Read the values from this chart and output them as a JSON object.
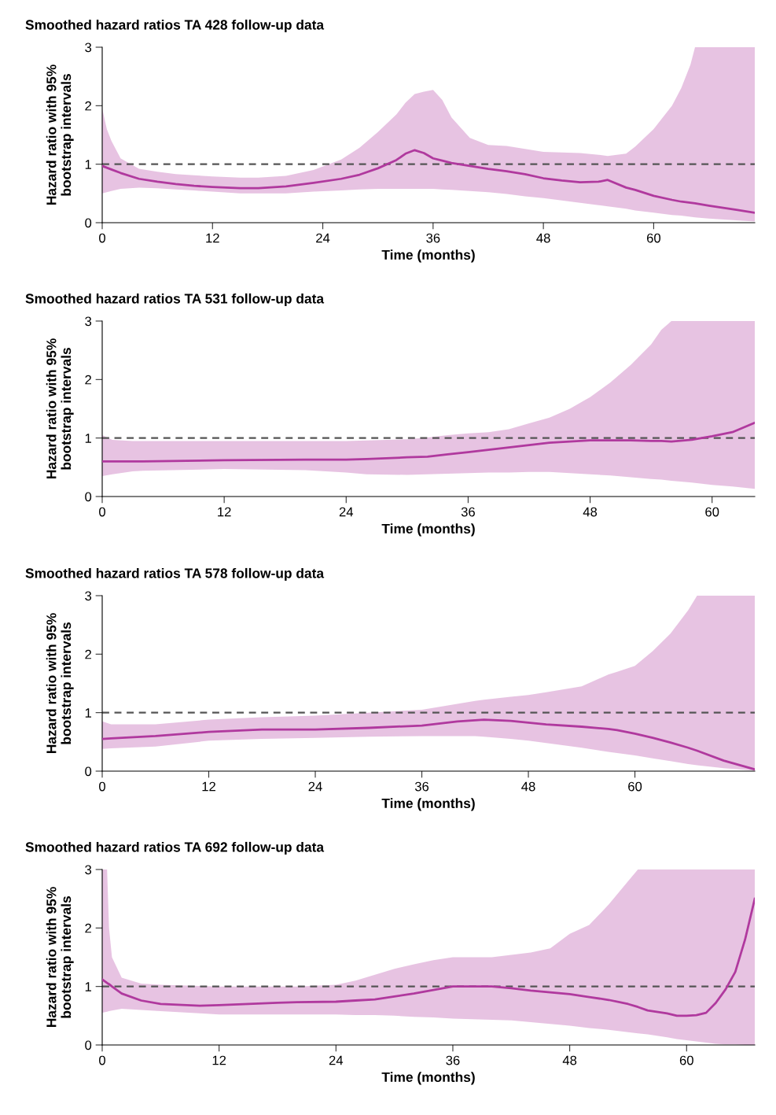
{
  "chart_data": [
    {
      "type": "line",
      "title": "Smoothed hazard ratios TA 428 follow-up data",
      "xlabel": "Time (months)",
      "ylabel": "Hazard ratio with 95%\nbootstrap intervals",
      "xlim": [
        0,
        71
      ],
      "xticks": [
        0,
        12,
        24,
        36,
        48,
        60
      ],
      "ylim": [
        0,
        3
      ],
      "yticks": [
        0,
        1,
        2,
        3
      ],
      "line_style": "solid",
      "grid": false,
      "ref_lines": [
        {
          "axis": "y",
          "value": 1,
          "color": "#555555",
          "line_style": "dashed"
        }
      ],
      "series": [
        {
          "color": "#b0399e",
          "x": [
            0,
            0.5,
            1,
            2,
            4,
            6,
            8,
            10,
            12,
            15,
            17,
            20,
            23,
            26,
            28,
            30,
            32,
            33,
            34,
            35,
            36,
            37,
            38,
            40,
            42,
            44,
            46,
            48,
            50,
            52,
            54,
            55,
            57,
            58,
            60,
            62,
            63,
            64,
            64.5,
            66,
            69,
            71
          ],
          "values": [
            0.97,
            0.94,
            0.91,
            0.85,
            0.75,
            0.7,
            0.66,
            0.63,
            0.61,
            0.59,
            0.59,
            0.62,
            0.68,
            0.75,
            0.82,
            0.93,
            1.07,
            1.18,
            1.24,
            1.19,
            1.1,
            1.06,
            1.02,
            0.97,
            0.92,
            0.88,
            0.83,
            0.76,
            0.72,
            0.69,
            0.7,
            0.73,
            0.6,
            0.56,
            0.46,
            0.39,
            0.36,
            0.34,
            0.33,
            0.29,
            0.22,
            0.17
          ],
          "upper": [
            1.95,
            1.6,
            1.4,
            1.1,
            0.92,
            0.87,
            0.83,
            0.81,
            0.79,
            0.77,
            0.77,
            0.8,
            0.9,
            1.08,
            1.28,
            1.55,
            1.85,
            2.05,
            2.2,
            2.24,
            2.27,
            2.1,
            1.8,
            1.45,
            1.33,
            1.31,
            1.26,
            1.21,
            1.2,
            1.19,
            1.16,
            1.14,
            1.18,
            1.3,
            1.6,
            2.0,
            2.3,
            2.7,
            3.0,
            3.0,
            3.0,
            3.0
          ],
          "lower": [
            0.5,
            0.52,
            0.54,
            0.58,
            0.6,
            0.59,
            0.57,
            0.55,
            0.53,
            0.5,
            0.5,
            0.5,
            0.53,
            0.55,
            0.57,
            0.58,
            0.58,
            0.58,
            0.58,
            0.58,
            0.58,
            0.57,
            0.56,
            0.54,
            0.52,
            0.49,
            0.45,
            0.42,
            0.38,
            0.34,
            0.3,
            0.28,
            0.24,
            0.21,
            0.17,
            0.13,
            0.12,
            0.1,
            0.09,
            0.07,
            0.04,
            0.02
          ]
        }
      ]
    },
    {
      "type": "line",
      "title": "Smoothed hazard ratios TA 531 follow-up data",
      "xlabel": "Time (months)",
      "ylabel": "Hazard ratio with 95%\nbootstrap intervals",
      "xlim": [
        0,
        64.2
      ],
      "xticks": [
        0,
        12,
        24,
        36,
        48,
        60
      ],
      "ylim": [
        0,
        3
      ],
      "yticks": [
        0,
        1,
        2,
        3
      ],
      "line_style": "solid",
      "grid": false,
      "ref_lines": [
        {
          "axis": "y",
          "value": 1,
          "color": "#555555",
          "line_style": "dashed"
        }
      ],
      "series": [
        {
          "color": "#b0399e",
          "x": [
            0,
            1,
            3,
            4,
            12,
            20,
            24,
            26,
            30,
            32,
            34,
            36,
            38,
            40,
            42,
            44,
            46,
            48,
            50,
            52,
            54,
            55,
            56,
            58,
            60,
            62,
            64.2
          ],
          "values": [
            0.6,
            0.6,
            0.6,
            0.6,
            0.62,
            0.63,
            0.63,
            0.64,
            0.67,
            0.68,
            0.72,
            0.76,
            0.8,
            0.84,
            0.88,
            0.92,
            0.94,
            0.96,
            0.96,
            0.96,
            0.95,
            0.95,
            0.94,
            0.97,
            1.03,
            1.1,
            1.26
          ],
          "upper": [
            1.05,
            0.97,
            0.95,
            0.95,
            0.95,
            0.95,
            0.95,
            0.96,
            0.98,
            1.01,
            1.05,
            1.08,
            1.1,
            1.15,
            1.25,
            1.35,
            1.5,
            1.7,
            1.95,
            2.25,
            2.6,
            2.85,
            3.0,
            3.0,
            3.0,
            3.0,
            3.0
          ],
          "lower": [
            0.35,
            0.38,
            0.43,
            0.44,
            0.47,
            0.45,
            0.41,
            0.38,
            0.37,
            0.38,
            0.39,
            0.4,
            0.41,
            0.41,
            0.42,
            0.42,
            0.4,
            0.38,
            0.36,
            0.33,
            0.3,
            0.29,
            0.27,
            0.24,
            0.2,
            0.17,
            0.13
          ]
        }
      ]
    },
    {
      "type": "line",
      "title": "Smoothed hazard ratios TA 578 follow-up data",
      "xlabel": "Time (months)",
      "ylabel": "Hazard ratio with 95%\nbootstrap intervals",
      "xlim": [
        0,
        73.5
      ],
      "xticks": [
        0,
        12,
        24,
        36,
        48,
        60
      ],
      "ylim": [
        0,
        3
      ],
      "yticks": [
        0,
        1,
        2,
        3
      ],
      "line_style": "solid",
      "grid": false,
      "ref_lines": [
        {
          "axis": "y",
          "value": 1,
          "color": "#555555",
          "line_style": "dashed"
        }
      ],
      "series": [
        {
          "color": "#b0399e",
          "x": [
            0,
            1,
            6,
            12,
            18,
            24,
            30,
            36,
            40,
            42,
            43,
            46,
            48,
            50,
            54,
            57,
            58,
            60,
            62,
            64,
            66,
            67,
            70,
            73.5
          ],
          "values": [
            0.55,
            0.56,
            0.6,
            0.67,
            0.71,
            0.71,
            0.74,
            0.78,
            0.85,
            0.87,
            0.88,
            0.86,
            0.83,
            0.8,
            0.76,
            0.72,
            0.7,
            0.64,
            0.57,
            0.49,
            0.4,
            0.35,
            0.18,
            0.03
          ],
          "upper": [
            0.85,
            0.8,
            0.8,
            0.88,
            0.92,
            0.95,
            1.0,
            1.05,
            1.15,
            1.2,
            1.22,
            1.27,
            1.3,
            1.35,
            1.45,
            1.65,
            1.7,
            1.8,
            2.05,
            2.35,
            2.75,
            3.0,
            3.0,
            3.0
          ],
          "lower": [
            0.38,
            0.39,
            0.42,
            0.52,
            0.55,
            0.57,
            0.59,
            0.6,
            0.6,
            0.6,
            0.59,
            0.55,
            0.52,
            0.48,
            0.4,
            0.33,
            0.31,
            0.27,
            0.22,
            0.17,
            0.12,
            0.1,
            0.05,
            0.01
          ]
        }
      ]
    },
    {
      "type": "line",
      "title": "Smoothed hazard ratios TA 692 follow-up data",
      "xlabel": "Time (months)",
      "ylabel": "Hazard ratio with 95%\nbootstrap intervals",
      "xlim": [
        0,
        67
      ],
      "xticks": [
        0,
        12,
        24,
        36,
        48,
        60
      ],
      "ylim": [
        0,
        3
      ],
      "yticks": [
        0,
        1,
        2,
        3
      ],
      "line_style": "solid",
      "grid": false,
      "ref_lines": [
        {
          "axis": "y",
          "value": 1,
          "color": "#555555",
          "line_style": "dashed"
        }
      ],
      "series": [
        {
          "color": "#b0399e",
          "x": [
            0,
            0.5,
            0.7,
            1,
            2,
            4,
            6,
            10,
            12,
            18,
            20,
            24,
            26,
            28,
            30,
            32,
            34,
            36,
            38,
            40,
            42,
            44,
            46,
            48,
            50,
            52,
            54,
            55,
            56,
            58,
            59,
            60,
            61,
            62,
            63,
            64,
            65,
            66,
            67
          ],
          "values": [
            1.12,
            1.06,
            1.04,
            1.0,
            0.88,
            0.76,
            0.7,
            0.67,
            0.68,
            0.72,
            0.73,
            0.74,
            0.76,
            0.78,
            0.83,
            0.88,
            0.94,
            1.0,
            1.0,
            1.0,
            0.97,
            0.93,
            0.9,
            0.87,
            0.82,
            0.77,
            0.7,
            0.65,
            0.59,
            0.54,
            0.5,
            0.5,
            0.51,
            0.55,
            0.72,
            0.95,
            1.25,
            1.8,
            2.5
          ],
          "upper": [
            3.0,
            3.0,
            2.0,
            1.5,
            1.15,
            1.05,
            1.03,
            1.01,
            1.0,
            1.0,
            1.0,
            1.03,
            1.1,
            1.2,
            1.3,
            1.38,
            1.45,
            1.5,
            1.5,
            1.5,
            1.54,
            1.58,
            1.65,
            1.9,
            2.05,
            2.4,
            2.8,
            3.0,
            3.0,
            3.0,
            3.0,
            3.0,
            3.0,
            3.0,
            3.0,
            3.0,
            3.0,
            3.0,
            3.0
          ],
          "lower": [
            0.55,
            0.57,
            0.58,
            0.59,
            0.62,
            0.6,
            0.58,
            0.54,
            0.52,
            0.52,
            0.52,
            0.52,
            0.51,
            0.51,
            0.5,
            0.48,
            0.47,
            0.45,
            0.44,
            0.43,
            0.42,
            0.39,
            0.36,
            0.33,
            0.29,
            0.26,
            0.22,
            0.2,
            0.18,
            0.13,
            0.1,
            0.08,
            0.06,
            0.04,
            0.02,
            0.01,
            0.01,
            0.0,
            0.0
          ]
        }
      ]
    }
  ]
}
